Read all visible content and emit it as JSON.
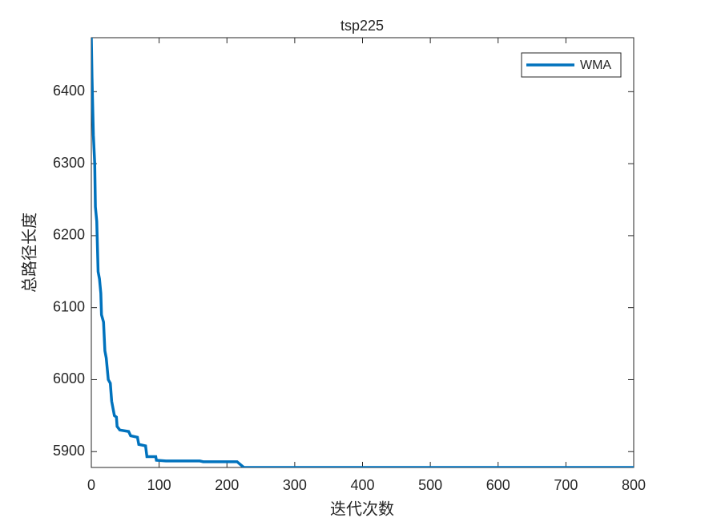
{
  "chart_data": {
    "type": "line",
    "title": "tsp225",
    "xlabel": "迭代次数",
    "ylabel": "总路径长度",
    "x": [
      0,
      1,
      2,
      3,
      5,
      6,
      8,
      10,
      12,
      14,
      15,
      18,
      20,
      22,
      25,
      28,
      30,
      32,
      34,
      37,
      38,
      42,
      55,
      58,
      68,
      70,
      80,
      82,
      95,
      96,
      110,
      160,
      165,
      215,
      220,
      225,
      800
    ],
    "series": [
      {
        "name": "WMA",
        "color": "#0072bd",
        "values": [
          6475,
          6420,
          6380,
          6340,
          6300,
          6240,
          6220,
          6150,
          6140,
          6120,
          6090,
          6080,
          6040,
          6030,
          6000,
          5995,
          5970,
          5960,
          5950,
          5948,
          5935,
          5930,
          5928,
          5922,
          5920,
          5910,
          5908,
          5893,
          5893,
          5888,
          5887,
          5887,
          5886,
          5886,
          5882,
          5878,
          5878
        ]
      }
    ],
    "xlim": [
      0,
      800
    ],
    "xticks": [
      0,
      100,
      200,
      300,
      400,
      500,
      600,
      700,
      800
    ],
    "ylim": [
      5878,
      6475
    ],
    "yticks": [
      5900,
      6000,
      6100,
      6200,
      6300,
      6400
    ],
    "legend": "upper-right"
  }
}
